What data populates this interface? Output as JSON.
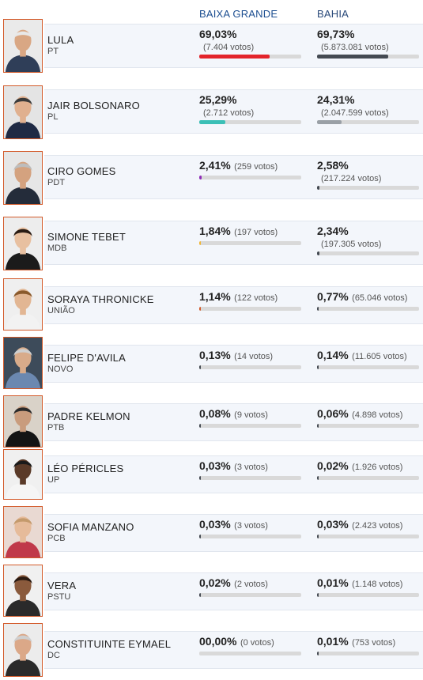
{
  "header": {
    "col_baixa": "BAIXA GRANDE",
    "col_bahia": "BAHIA"
  },
  "colors": {
    "lula": "#e3242b",
    "bolsonaro": "#3bbfb6",
    "ciro": "#8e2bb8",
    "tebet": "#f2b632",
    "soraya": "#d35a2a",
    "dark": "#444a52",
    "dark_light": "#9aa0a6"
  },
  "candidates": [
    {
      "name": "LULA",
      "party": "PT",
      "photo_icon": "lula-photo",
      "bg": {
        "pct": "69,03%",
        "votes": "(7.404 votos)",
        "share": 69.03
      },
      "ba": {
        "pct": "69,73%",
        "votes": "(5.873.081 votos)",
        "share": 69.73
      }
    },
    {
      "name": "JAIR BOLSONARO",
      "party": "PL",
      "photo_icon": "bolsonaro-photo",
      "bg": {
        "pct": "25,29%",
        "votes": "(2.712 votos)",
        "share": 25.29
      },
      "ba": {
        "pct": "24,31%",
        "votes": "(2.047.599 votos)",
        "share": 24.31
      }
    },
    {
      "name": "CIRO GOMES",
      "party": "PDT",
      "photo_icon": "ciro-photo",
      "bg": {
        "pct": "2,41%",
        "votes": "(259 votos)",
        "share": 2.41
      },
      "ba": {
        "pct": "2,58%",
        "votes": "(217.224 votos)",
        "share": 2.58
      }
    },
    {
      "name": "SIMONE TEBET",
      "party": "MDB",
      "photo_icon": "tebet-photo",
      "bg": {
        "pct": "1,84%",
        "votes": "(197 votos)",
        "share": 1.84
      },
      "ba": {
        "pct": "2,34%",
        "votes": "(197.305 votos)",
        "share": 2.34
      }
    },
    {
      "name": "SORAYA THRONICKE",
      "party": "UNIÃO",
      "photo_icon": "soraya-photo",
      "bg": {
        "pct": "1,14%",
        "votes": "(122 votos)",
        "share": 1.14
      },
      "ba": {
        "pct": "0,77%",
        "votes": "(65.046 votos)",
        "share": 0.77
      }
    },
    {
      "name": "FELIPE D'AVILA",
      "party": "NOVO",
      "photo_icon": "davila-photo",
      "bg": {
        "pct": "0,13%",
        "votes": "(14 votos)",
        "share": 0.13
      },
      "ba": {
        "pct": "0,14%",
        "votes": "(11.605 votos)",
        "share": 0.14
      }
    },
    {
      "name": "PADRE KELMON",
      "party": "PTB",
      "photo_icon": "kelmon-photo",
      "bg": {
        "pct": "0,08%",
        "votes": "(9 votos)",
        "share": 0.08
      },
      "ba": {
        "pct": "0,06%",
        "votes": "(4.898 votos)",
        "share": 0.06
      }
    },
    {
      "name": "LÉO PÉRICLES",
      "party": "UP",
      "photo_icon": "pericles-photo",
      "bg": {
        "pct": "0,03%",
        "votes": "(3 votos)",
        "share": 0.03
      },
      "ba": {
        "pct": "0,02%",
        "votes": "(1.926 votos)",
        "share": 0.02
      }
    },
    {
      "name": "SOFIA MANZANO",
      "party": "PCB",
      "photo_icon": "manzano-photo",
      "bg": {
        "pct": "0,03%",
        "votes": "(3 votos)",
        "share": 0.03
      },
      "ba": {
        "pct": "0,03%",
        "votes": "(2.423 votos)",
        "share": 0.03
      }
    },
    {
      "name": "VERA",
      "party": "PSTU",
      "photo_icon": "vera-photo",
      "bg": {
        "pct": "0,02%",
        "votes": "(2 votos)",
        "share": 0.02
      },
      "ba": {
        "pct": "0,01%",
        "votes": "(1.148 votos)",
        "share": 0.01
      }
    },
    {
      "name": "CONSTITUINTE EYMAEL",
      "party": "DC",
      "photo_icon": "eymael-photo",
      "bg": {
        "pct": "00,00%",
        "votes": "(0 votos)",
        "share": 0.0
      },
      "ba": {
        "pct": "0,01%",
        "votes": "(753 votos)",
        "share": 0.01
      }
    }
  ]
}
